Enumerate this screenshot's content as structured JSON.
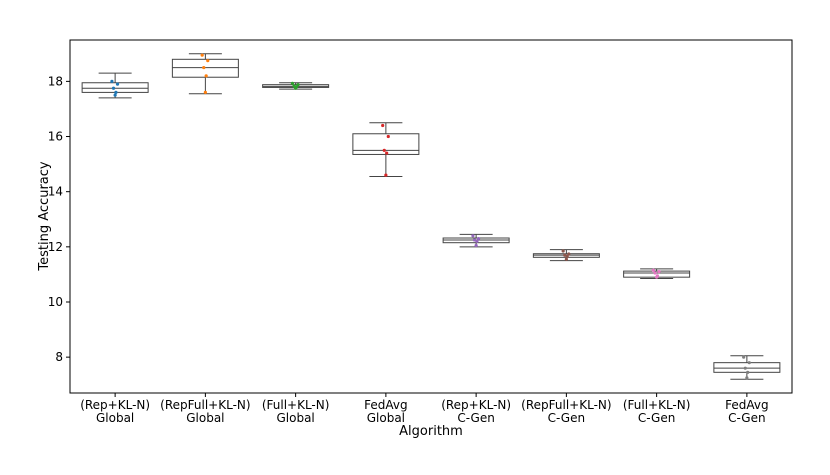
{
  "chart_data": {
    "type": "box",
    "xlabel": "Algorithm",
    "ylabel": "Testing Accuracy",
    "ylim": [
      6.7,
      19.5
    ],
    "yticks": [
      8,
      10,
      12,
      14,
      16,
      18
    ],
    "grid": false,
    "categories": [
      [
        "(Rep+KL-N)",
        "Global"
      ],
      [
        "(RepFull+KL-N)",
        "Global"
      ],
      [
        "(Full+KL-N)",
        "Global"
      ],
      [
        "FedAvg",
        "Global"
      ],
      [
        "(Rep+KL-N)",
        "C-Gen"
      ],
      [
        "(RepFull+KL-N)",
        "C-Gen"
      ],
      [
        "(Full+KL-N)",
        "C-Gen"
      ],
      [
        "FedAvg",
        "C-Gen"
      ]
    ],
    "boxes": [
      {
        "min": 17.4,
        "q1": 17.6,
        "median": 17.75,
        "q3": 17.95,
        "max": 18.3,
        "color": "#1f77b4",
        "points": [
          17.5,
          17.6,
          17.75,
          17.9,
          18.0
        ]
      },
      {
        "min": 17.55,
        "q1": 18.15,
        "median": 18.5,
        "q3": 18.8,
        "max": 19.0,
        "color": "#ff7f0e",
        "points": [
          17.6,
          18.2,
          18.5,
          18.75,
          18.95
        ]
      },
      {
        "min": 17.72,
        "q1": 17.78,
        "median": 17.82,
        "q3": 17.88,
        "max": 17.95,
        "color": "#2ca02c",
        "points": [
          17.75,
          17.8,
          17.83,
          17.88,
          17.93
        ]
      },
      {
        "min": 14.55,
        "q1": 15.35,
        "median": 15.5,
        "q3": 16.1,
        "max": 16.5,
        "color": "#d62728",
        "points": [
          14.6,
          15.4,
          15.5,
          16.0,
          16.4
        ]
      },
      {
        "min": 12.0,
        "q1": 12.15,
        "median": 12.25,
        "q3": 12.32,
        "max": 12.45,
        "color": "#9467bd",
        "points": [
          12.05,
          12.2,
          12.25,
          12.3,
          12.4
        ]
      },
      {
        "min": 11.5,
        "q1": 11.62,
        "median": 11.7,
        "q3": 11.75,
        "max": 11.9,
        "color": "#8c564b",
        "points": [
          11.55,
          11.65,
          11.7,
          11.74,
          11.85
        ]
      },
      {
        "min": 10.85,
        "q1": 10.9,
        "median": 11.05,
        "q3": 11.12,
        "max": 11.2,
        "color": "#e377c2",
        "points": [
          10.9,
          10.95,
          11.05,
          11.1,
          11.15
        ]
      },
      {
        "min": 7.2,
        "q1": 7.45,
        "median": 7.6,
        "q3": 7.8,
        "max": 8.05,
        "color": "#7f7f7f",
        "points": [
          7.25,
          7.45,
          7.6,
          7.8,
          8.0
        ]
      }
    ]
  }
}
